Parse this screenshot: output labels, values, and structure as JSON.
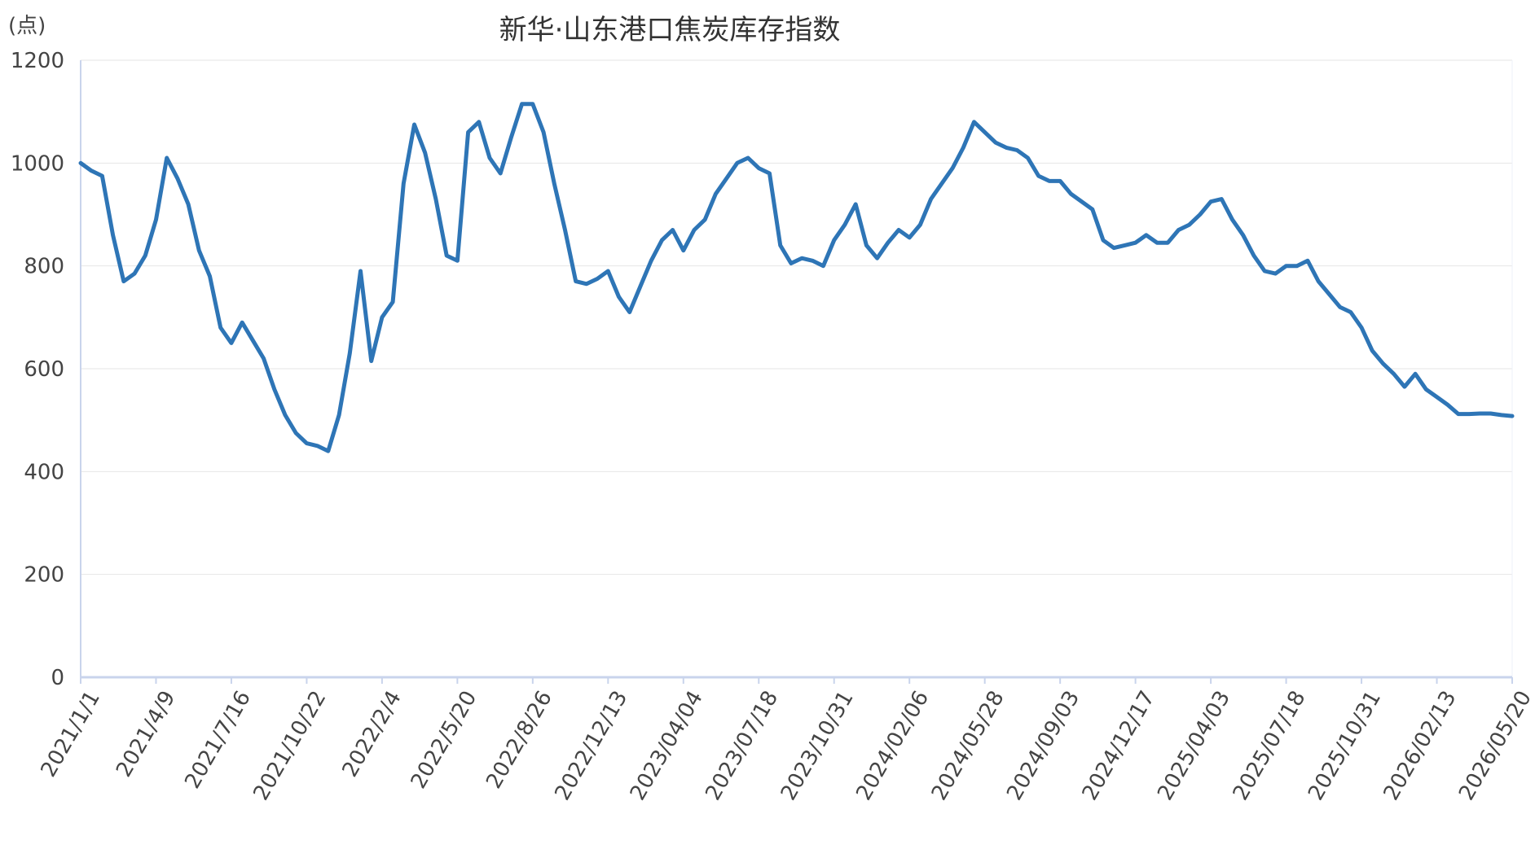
{
  "chart_data": {
    "type": "line",
    "title": "新华·山东港口焦炭库存指数",
    "y_unit": "(点)",
    "categories": [
      "2021/1/1",
      null,
      null,
      null,
      null,
      null,
      null,
      "2021/4/9",
      null,
      null,
      null,
      null,
      null,
      null,
      "2021/7/16",
      null,
      null,
      null,
      null,
      null,
      null,
      "2021/10/22",
      null,
      null,
      null,
      null,
      null,
      null,
      "2022/2/4",
      null,
      null,
      null,
      null,
      null,
      null,
      "2022/5/20",
      null,
      null,
      null,
      null,
      null,
      null,
      "2022/8/26",
      null,
      null,
      null,
      null,
      null,
      null,
      "2022/12/13",
      null,
      null,
      null,
      null,
      null,
      null,
      "2023/04/04",
      null,
      null,
      null,
      null,
      null,
      null,
      "2023/07/18",
      null,
      null,
      null,
      null,
      null,
      null,
      "2023/10/31",
      null,
      null,
      null,
      null,
      null,
      null,
      "2024/02/06",
      null,
      null,
      null,
      null,
      null,
      null,
      "2024/05/28",
      null,
      null,
      null,
      null,
      null,
      null,
      "2024/09/03",
      null,
      null,
      null,
      null,
      null,
      null,
      "2024/12/17",
      null,
      null,
      null,
      null,
      null,
      null,
      "2025/04/03",
      null,
      null,
      null,
      null,
      null,
      null,
      "2025/07/18",
      null,
      null,
      null,
      null,
      null,
      null,
      "2025/10/31",
      null,
      null,
      null,
      null,
      null,
      null,
      "2026/02/13",
      null,
      null,
      null,
      null,
      null,
      null,
      "2026/05/20"
    ],
    "series": [
      {
        "name": "新华·山东港口焦炭库存指数",
        "color": "#2e75b6",
        "values": [
          1000,
          985,
          975,
          860,
          770,
          785,
          820,
          890,
          1010,
          970,
          920,
          830,
          780,
          680,
          650,
          690,
          655,
          620,
          560,
          510,
          475,
          455,
          450,
          440,
          510,
          630,
          790,
          615,
          700,
          730,
          960,
          1075,
          1020,
          930,
          820,
          810,
          1060,
          1080,
          1010,
          980,
          1050,
          1115,
          1115,
          1060,
          960,
          870,
          770,
          765,
          775,
          790,
          740,
          710,
          760,
          810,
          850,
          870,
          830,
          870,
          890,
          940,
          970,
          1000,
          1010,
          990,
          980,
          840,
          805,
          815,
          810,
          800,
          850,
          880,
          920,
          840,
          815,
          845,
          870,
          855,
          880,
          930,
          960,
          990,
          1030,
          1080,
          1060,
          1040,
          1030,
          1025,
          1010,
          975,
          965,
          965,
          940,
          925,
          910,
          850,
          835,
          840,
          845,
          860,
          845,
          845,
          870,
          880,
          900,
          925,
          930,
          890,
          860,
          820,
          790,
          785,
          800,
          800,
          810,
          770,
          745,
          720,
          710,
          680,
          635,
          610,
          590,
          565,
          590,
          560,
          545,
          530,
          512,
          512,
          513,
          513,
          510,
          508
        ]
      }
    ],
    "ylim": [
      0,
      1200
    ],
    "yticks": [
      0,
      200,
      400,
      600,
      800,
      1000,
      1200
    ],
    "grid": true
  }
}
